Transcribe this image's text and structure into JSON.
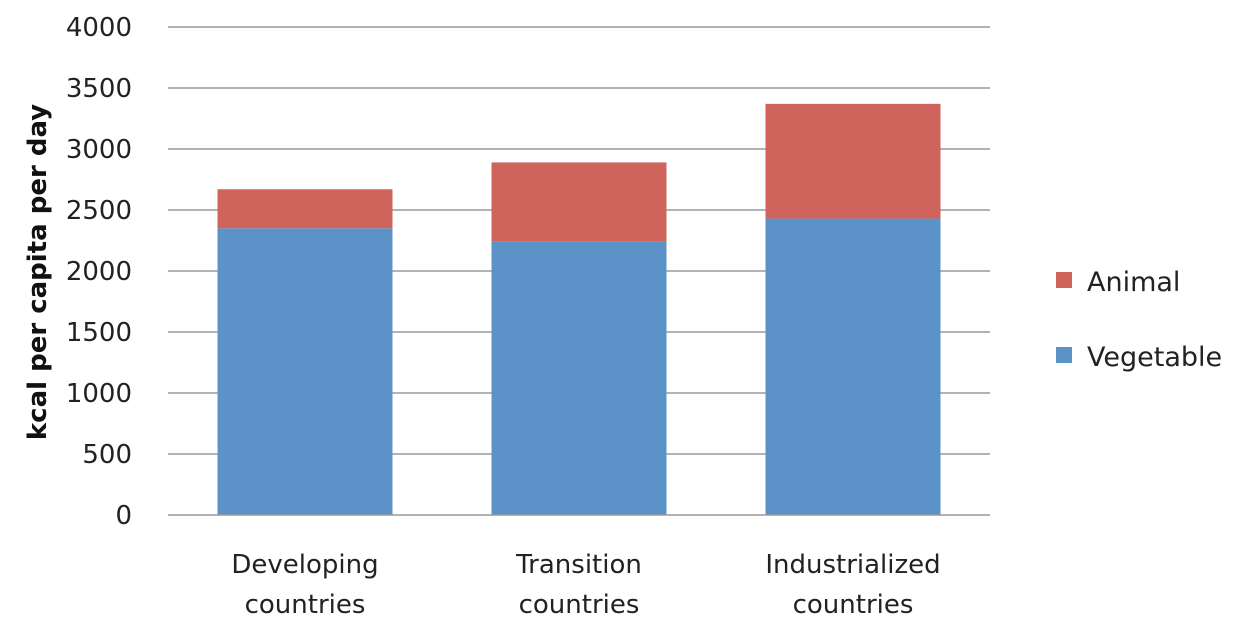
{
  "chart_data": {
    "type": "bar",
    "stacked": true,
    "title": "",
    "xlabel": "",
    "ylabel": "kcal per capita per day",
    "ylim": [
      0,
      4000
    ],
    "yticks": [
      0,
      500,
      1000,
      1500,
      2000,
      2500,
      3000,
      3500,
      4000
    ],
    "grid": true,
    "legend_position": "right",
    "categories": [
      [
        "Developing",
        "countries"
      ],
      [
        "Transition",
        "countries"
      ],
      [
        "Industrialized",
        "countries"
      ]
    ],
    "series": [
      {
        "name": "Vegetable",
        "color": "#5B93C8",
        "values": [
          2350,
          2240,
          2430
        ]
      },
      {
        "name": "Animal",
        "color": "#CF645D",
        "values": [
          320,
          650,
          940
        ]
      }
    ],
    "legend_order": [
      "Animal",
      "Vegetable"
    ]
  }
}
